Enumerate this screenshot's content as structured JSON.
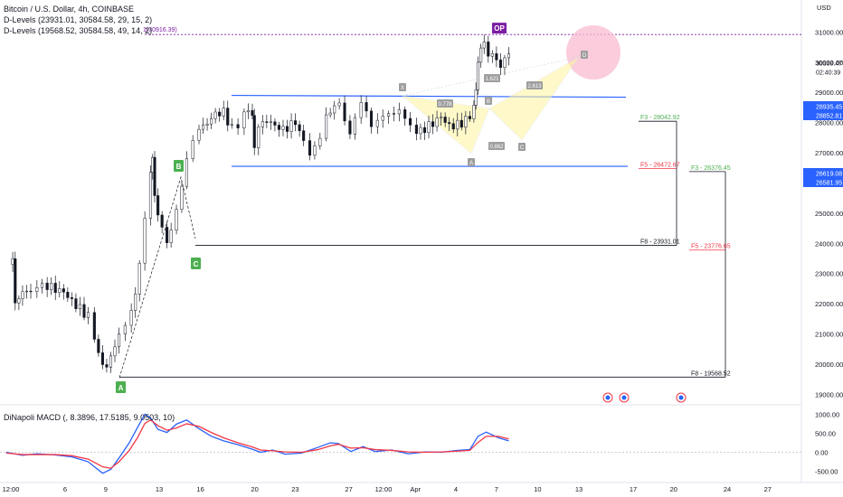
{
  "legend": {
    "symbol": "Bitcoin / U.S. Dollar, 4h, COINBASE",
    "dlevels1": "D-Levels (23931.01, 30584.58, 29, 15, 2)",
    "dlevels2": "D-Levels (19568.52, 30584.58, 49, 14, 2)"
  },
  "macd_title": "DiNapoli MACD (, 8.3896, 17.5185, 9.0503, 10)",
  "currency": "USD",
  "price_tags": {
    "last": "30339.47",
    "timer": "02:40:39",
    "a": "28935.45",
    "b": "28852.81",
    "c": "26619.08",
    "d": "26581.95"
  },
  "annotations": {
    "op_label": "OP",
    "op_level": "1(30916.39)",
    "f3_1": "F3 - 28042.92",
    "f5_1": "F5 - 26472.67",
    "f8_1": "F8 - 23931.01",
    "f3_2": "F3 - 26376.45",
    "f5_2": "F5 - 23776.65",
    "f8_2": "F8 - 19568.52",
    "point_a": "A",
    "point_b": "B",
    "point_c": "C",
    "harm_x": "X",
    "harm_a": "A",
    "harm_b": "B",
    "harm_c": "C",
    "harm_d": "D",
    "r1": "0.778",
    "r2": "1.621",
    "r3": "0.862",
    "r4": "2.613"
  },
  "chart_data": {
    "type": "candlestick",
    "symbol": "Bitcoin / U.S. Dollar",
    "interval": "4h",
    "exchange": "COINBASE",
    "y_axis": {
      "unit": "USD",
      "ylim": [
        18800,
        31700
      ],
      "ticks": [
        19000,
        20000,
        21000,
        22000,
        23000,
        24000,
        25000,
        26000,
        27000,
        28000,
        29000,
        30000,
        31000
      ],
      "tick_labels": [
        "19000.00",
        "20000.00",
        "21000.00",
        "22000.00",
        "23000.00",
        "24000.00",
        "25000.00",
        "26000.00",
        "27000.00",
        "28000.00",
        "29000.00",
        "30000.00",
        "31000.00"
      ]
    },
    "x_axis": {
      "tick_labels": [
        "12:00",
        "6",
        "9",
        "13",
        "16",
        "20",
        "23",
        "27",
        "12:00",
        "Apr",
        "4",
        "7",
        "10",
        "13",
        "17",
        "20",
        "24",
        "27"
      ],
      "tick_pos": [
        0.0,
        0.075,
        0.131,
        0.205,
        0.262,
        0.337,
        0.393,
        0.467,
        0.515,
        0.559,
        0.615,
        0.671,
        0.728,
        0.785,
        0.86,
        0.916,
        0.99,
        1.046
      ]
    },
    "close_path": [
      [
        0.0,
        23300
      ],
      [
        0.016,
        23600
      ],
      [
        0.022,
        22200
      ],
      [
        0.04,
        22450
      ],
      [
        0.06,
        22550
      ],
      [
        0.075,
        22500
      ],
      [
        0.1,
        22600
      ],
      [
        0.12,
        22400
      ],
      [
        0.14,
        22300
      ],
      [
        0.16,
        22000
      ],
      [
        0.18,
        21800
      ],
      [
        0.2,
        21600
      ],
      [
        0.215,
        21000
      ],
      [
        0.225,
        20500
      ],
      [
        0.235,
        20000
      ],
      [
        0.245,
        19800
      ],
      [
        0.255,
        20100
      ],
      [
        0.265,
        20400
      ],
      [
        0.275,
        20900
      ],
      [
        0.29,
        21300
      ],
      [
        0.305,
        21900
      ],
      [
        0.315,
        22500
      ],
      [
        0.325,
        23500
      ],
      [
        0.338,
        24900
      ],
      [
        0.352,
        26300
      ],
      [
        0.357,
        26700
      ],
      [
        0.362,
        25400
      ],
      [
        0.37,
        24800
      ],
      [
        0.38,
        24500
      ],
      [
        0.392,
        24100
      ],
      [
        0.402,
        24600
      ],
      [
        0.415,
        25300
      ],
      [
        0.428,
        26000
      ],
      [
        0.44,
        26800
      ],
      [
        0.455,
        27300
      ],
      [
        0.47,
        27600
      ],
      [
        0.49,
        27900
      ],
      [
        0.51,
        28200
      ],
      [
        0.53,
        28300
      ],
      [
        0.55,
        27800
      ],
      [
        0.565,
        28000
      ],
      [
        0.58,
        28500
      ],
      [
        0.6,
        28400
      ],
      [
        0.605,
        27100
      ],
      [
        0.615,
        27700
      ],
      [
        0.635,
        28000
      ],
      [
        0.655,
        27800
      ],
      [
        0.675,
        27700
      ],
      [
        0.695,
        27900
      ],
      [
        0.705,
        28100
      ],
      [
        0.715,
        27900
      ],
      [
        0.725,
        27500
      ],
      [
        0.74,
        26900
      ],
      [
        0.752,
        27100
      ],
      [
        0.765,
        27300
      ],
      [
        0.78,
        28100
      ],
      [
        0.8,
        28400
      ],
      [
        0.812,
        28700
      ],
      [
        0.825,
        28200
      ],
      [
        0.838,
        27800
      ],
      [
        0.85,
        28300
      ],
      [
        0.865,
        28700
      ],
      [
        0.878,
        28300
      ],
      [
        0.89,
        27700
      ],
      [
        0.905,
        27900
      ],
      [
        0.918,
        28100
      ],
      [
        0.932,
        28300
      ],
      [
        0.945,
        28400
      ],
      [
        0.958,
        28600
      ],
      [
        0.972,
        28300
      ],
      [
        0.985,
        28000
      ],
      [
        1.0,
        27600
      ],
      [
        1.02,
        27800
      ],
      [
        1.04,
        27900
      ],
      [
        1.06,
        28100
      ],
      [
        1.08,
        27800
      ],
      [
        1.1,
        27900
      ],
      [
        1.12,
        28100
      ],
      [
        1.13,
        28300
      ],
      [
        1.14,
        28700
      ],
      [
        1.145,
        29100
      ],
      [
        1.15,
        29900
      ],
      [
        1.157,
        30300
      ],
      [
        1.165,
        30500
      ],
      [
        1.175,
        30100
      ],
      [
        1.185,
        30300
      ],
      [
        1.195,
        30200
      ],
      [
        1.205,
        30000
      ],
      [
        1.215,
        30300
      ],
      [
        1.225,
        30339
      ]
    ],
    "dlevels": [
      {
        "name": "D-Levels",
        "F3": 28042.92,
        "F5": 26472.67,
        "F8": 23931.01
      },
      {
        "name": "D-Levels",
        "F3": 26376.45,
        "F5": 23776.65,
        "F8": 19568.52
      }
    ],
    "op_level": 30916.39,
    "range_box": {
      "top": 28900,
      "bottom": 26550
    },
    "macd": {
      "ylim": [
        -700,
        1200
      ],
      "ticks": [
        -500,
        0,
        500,
        1000
      ],
      "tick_labels": [
        "-500.00",
        "0.00",
        "500.00",
        "1000.00"
      ],
      "series": [
        {
          "name": "",
          "color": "#2962ff",
          "values": [
            [
              0.0,
              0
            ],
            [
              0.04,
              -80
            ],
            [
              0.075,
              -40
            ],
            [
              0.12,
              -70
            ],
            [
              0.16,
              -120
            ],
            [
              0.2,
              -250
            ],
            [
              0.235,
              -550
            ],
            [
              0.255,
              -450
            ],
            [
              0.275,
              -150
            ],
            [
              0.3,
              250
            ],
            [
              0.32,
              650
            ],
            [
              0.338,
              1000
            ],
            [
              0.352,
              900
            ],
            [
              0.37,
              600
            ],
            [
              0.392,
              520
            ],
            [
              0.415,
              740
            ],
            [
              0.44,
              850
            ],
            [
              0.47,
              620
            ],
            [
              0.5,
              420
            ],
            [
              0.53,
              300
            ],
            [
              0.565,
              200
            ],
            [
              0.6,
              80
            ],
            [
              0.62,
              0
            ],
            [
              0.65,
              60
            ],
            [
              0.68,
              -50
            ],
            [
              0.72,
              -20
            ],
            [
              0.76,
              130
            ],
            [
              0.79,
              250
            ],
            [
              0.81,
              230
            ],
            [
              0.84,
              20
            ],
            [
              0.87,
              150
            ],
            [
              0.9,
              20
            ],
            [
              0.94,
              60
            ],
            [
              0.98,
              -40
            ],
            [
              1.02,
              10
            ],
            [
              1.06,
              0
            ],
            [
              1.1,
              50
            ],
            [
              1.13,
              70
            ],
            [
              1.15,
              420
            ],
            [
              1.17,
              530
            ],
            [
              1.2,
              380
            ],
            [
              1.225,
              300
            ]
          ]
        },
        {
          "name": "",
          "color": "#f23645",
          "values": [
            [
              0.0,
              -20
            ],
            [
              0.04,
              -60
            ],
            [
              0.075,
              -60
            ],
            [
              0.12,
              -60
            ],
            [
              0.16,
              -90
            ],
            [
              0.2,
              -180
            ],
            [
              0.235,
              -380
            ],
            [
              0.255,
              -420
            ],
            [
              0.275,
              -250
            ],
            [
              0.3,
              50
            ],
            [
              0.32,
              380
            ],
            [
              0.338,
              760
            ],
            [
              0.352,
              850
            ],
            [
              0.37,
              700
            ],
            [
              0.392,
              580
            ],
            [
              0.415,
              640
            ],
            [
              0.44,
              750
            ],
            [
              0.47,
              680
            ],
            [
              0.5,
              520
            ],
            [
              0.53,
              380
            ],
            [
              0.565,
              250
            ],
            [
              0.6,
              140
            ],
            [
              0.62,
              60
            ],
            [
              0.65,
              40
            ],
            [
              0.68,
              10
            ],
            [
              0.72,
              0
            ],
            [
              0.76,
              70
            ],
            [
              0.79,
              170
            ],
            [
              0.81,
              210
            ],
            [
              0.84,
              110
            ],
            [
              0.87,
              120
            ],
            [
              0.9,
              70
            ],
            [
              0.94,
              50
            ],
            [
              0.98,
              10
            ],
            [
              1.02,
              0
            ],
            [
              1.06,
              10
            ],
            [
              1.1,
              30
            ],
            [
              1.13,
              50
            ],
            [
              1.15,
              260
            ],
            [
              1.17,
              420
            ],
            [
              1.2,
              420
            ],
            [
              1.225,
              350
            ]
          ]
        }
      ]
    }
  },
  "colors": {
    "up": "#26a69a",
    "down": "#131722",
    "blue_line": "#2962ff",
    "red_line": "#f23645",
    "green_text": "#4caf50",
    "op_purple": "#7b1fa2",
    "pink_circle": "#f8bbd0"
  }
}
